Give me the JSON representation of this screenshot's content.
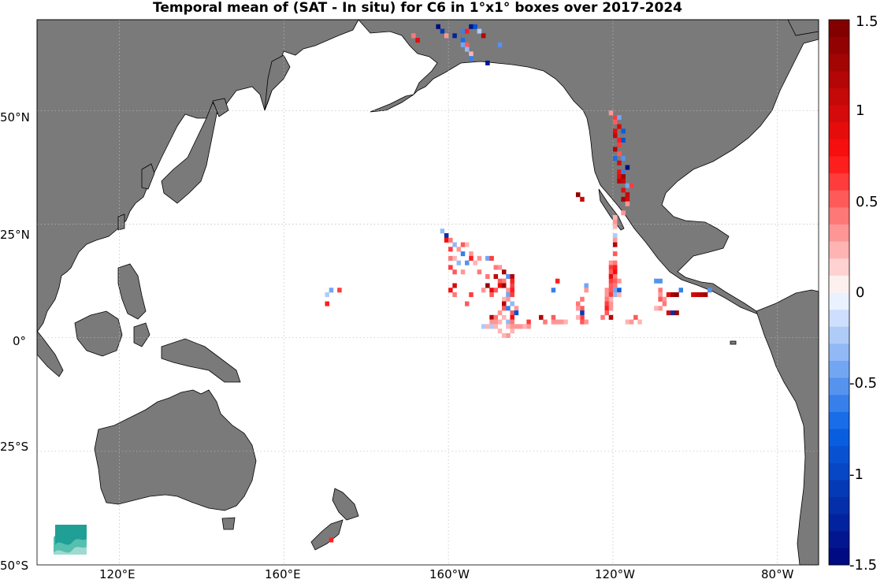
{
  "title": "Temporal mean of (SAT - In situ) for C6 in 1°x1° boxes over 2017-2024",
  "map": {
    "projection": "equirectangular",
    "lon_range": [
      100,
      290
    ],
    "lat_range": [
      -50,
      70
    ],
    "land_color": "#7a7a7a",
    "ocean_color": "#ffffff",
    "grid": true,
    "grid_style": "dotted",
    "lat_ticks": [
      {
        "label": "50°N",
        "lat": 50
      },
      {
        "label": "25°N",
        "lat": 25
      },
      {
        "label": "0°",
        "lat": 0
      },
      {
        "label": "25°S",
        "lat": -25
      },
      {
        "label": "50°S",
        "lat": -50
      }
    ],
    "lon_ticks": [
      {
        "label": "120°E",
        "lon": 120
      },
      {
        "label": "160°E",
        "lon": 160
      },
      {
        "label": "160°W",
        "lon": 200
      },
      {
        "label": "120°W",
        "lon": 240
      },
      {
        "label": "80°W",
        "lon": 280
      }
    ]
  },
  "colorbar": {
    "min": -1.5,
    "max": 1.5,
    "levels": 32,
    "colormap": "diverging blue-white-red",
    "ticks": [
      {
        "label": "1.5",
        "value": 1.5
      },
      {
        "label": "1",
        "value": 1
      },
      {
        "label": "0.5",
        "value": 0.5
      },
      {
        "label": "0",
        "value": 0
      },
      {
        "label": "-0.5",
        "value": -0.5
      },
      {
        "label": "-1",
        "value": -1
      },
      {
        "label": "-1.5",
        "value": -1.5
      }
    ]
  },
  "cells": [
    [
      191,
      66,
      0.45
    ],
    [
      192,
      65,
      0.9
    ],
    [
      197,
      68,
      -1.5
    ],
    [
      198,
      67,
      -1.1
    ],
    [
      199,
      66,
      0.3
    ],
    [
      201,
      66,
      -1.3
    ],
    [
      203,
      67,
      -0.6
    ],
    [
      204,
      67,
      0.7
    ],
    [
      205,
      68,
      -1.4
    ],
    [
      206,
      68,
      -0.9
    ],
    [
      207,
      67,
      -0.2
    ],
    [
      203,
      65,
      -0.7
    ],
    [
      208,
      66,
      1.2
    ],
    [
      203,
      64,
      -0.4
    ],
    [
      204,
      64,
      0.5
    ],
    [
      204,
      63,
      -0.3
    ],
    [
      205,
      62,
      0.2
    ],
    [
      205,
      61,
      -0.6
    ],
    [
      209,
      60,
      -1.4
    ],
    [
      212,
      64,
      -0.5
    ],
    [
      239,
      49,
      0.3
    ],
    [
      240,
      48,
      0.6
    ],
    [
      241,
      48,
      -0.4
    ],
    [
      240,
      47,
      0.5
    ],
    [
      241,
      46,
      1.0
    ],
    [
      240,
      45,
      0.9
    ],
    [
      242,
      45,
      -0.8
    ],
    [
      240,
      44,
      1.1
    ],
    [
      241,
      43,
      0.7
    ],
    [
      242,
      43,
      -0.9
    ],
    [
      241,
      42,
      0.6
    ],
    [
      240,
      41,
      1.2
    ],
    [
      241,
      40,
      0.5
    ],
    [
      240,
      39,
      -0.7
    ],
    [
      242,
      39,
      -0.5
    ],
    [
      241,
      38,
      1.0
    ],
    [
      243,
      37,
      -1.5
    ],
    [
      241,
      36,
      0.8
    ],
    [
      242,
      36,
      -0.6
    ],
    [
      241,
      35,
      0.9
    ],
    [
      242,
      35,
      1.3
    ],
    [
      241,
      34,
      1.2
    ],
    [
      242,
      34,
      1.1
    ],
    [
      243,
      33,
      -0.4
    ],
    [
      244,
      33,
      0.6
    ],
    [
      242,
      32,
      0.9
    ],
    [
      243,
      31,
      1.1
    ],
    [
      242,
      30,
      1.3
    ],
    [
      243,
      30,
      1.0
    ],
    [
      243,
      29,
      0.3
    ],
    [
      231,
      31,
      1.4
    ],
    [
      232,
      30,
      1.1
    ],
    [
      242,
      27,
      0.3
    ],
    [
      198,
      23,
      -0.3
    ],
    [
      199,
      22,
      -1.2
    ],
    [
      199,
      21,
      0.8
    ],
    [
      200,
      21,
      0.4
    ],
    [
      201,
      20,
      -0.3
    ],
    [
      203,
      20,
      0.5
    ],
    [
      204,
      20,
      0.2
    ],
    [
      200,
      19,
      0.6
    ],
    [
      202,
      19,
      0.3
    ],
    [
      203,
      18,
      -0.6
    ],
    [
      205,
      18,
      0.3
    ],
    [
      200,
      17,
      0.4
    ],
    [
      201,
      17,
      0.2
    ],
    [
      205,
      17,
      0.7
    ],
    [
      207,
      17,
      0.3
    ],
    [
      209,
      17,
      -0.4
    ],
    [
      210,
      17,
      0.6
    ],
    [
      202,
      16,
      -0.3
    ],
    [
      204,
      16,
      -0.5
    ],
    [
      206,
      16,
      0.2
    ],
    [
      211,
      15,
      0.4
    ],
    [
      212,
      15,
      0.3
    ],
    [
      200,
      15,
      0.6
    ],
    [
      201,
      14,
      0.5
    ],
    [
      203,
      14,
      0.3
    ],
    [
      207,
      14,
      0.4
    ],
    [
      213,
      14,
      1.3
    ],
    [
      209,
      13,
      0.4
    ],
    [
      211,
      13,
      1.1
    ],
    [
      214,
      13,
      -0.5
    ],
    [
      215,
      13,
      1.2
    ],
    [
      212,
      12,
      0.5
    ],
    [
      213,
      12,
      0.4
    ],
    [
      215,
      12,
      0.7
    ],
    [
      201,
      11,
      1.0
    ],
    [
      209,
      11,
      1.4
    ],
    [
      212,
      11,
      0.9
    ],
    [
      213,
      11,
      1.3
    ],
    [
      215,
      11,
      0.6
    ],
    [
      200,
      10,
      0.8
    ],
    [
      208,
      10,
      0.3
    ],
    [
      210,
      10,
      0.9
    ],
    [
      211,
      10,
      0.5
    ],
    [
      214,
      10,
      0.3
    ],
    [
      215,
      10,
      0.7
    ],
    [
      201,
      9,
      0.4
    ],
    [
      205,
      9,
      0.6
    ],
    [
      210,
      9,
      0.5
    ],
    [
      214,
      9,
      -0.4
    ],
    [
      215,
      9,
      0.6
    ],
    [
      213,
      8,
      0.2
    ],
    [
      214,
      8,
      0.3
    ],
    [
      204,
      7,
      0.5
    ],
    [
      213,
      7,
      1.2
    ],
    [
      215,
      7,
      -0.3
    ],
    [
      216,
      6,
      0.3
    ],
    [
      213,
      6,
      0.5
    ],
    [
      214,
      6,
      -0.6
    ],
    [
      212,
      5,
      0.3
    ],
    [
      215,
      5,
      0.5
    ],
    [
      216,
      5,
      -0.9
    ],
    [
      215,
      4,
      0.8
    ],
    [
      213,
      4,
      0.2
    ],
    [
      210,
      4,
      1.2
    ],
    [
      211,
      4,
      0.4
    ],
    [
      212,
      3,
      0.2
    ],
    [
      214,
      3,
      -0.3
    ],
    [
      210,
      3,
      0.3
    ],
    [
      211,
      3,
      0.3
    ],
    [
      215,
      3,
      0.4
    ],
    [
      214,
      2,
      0.2
    ],
    [
      215,
      2,
      0.3
    ],
    [
      215,
      1,
      0.2
    ],
    [
      170,
      9,
      -0.2
    ],
    [
      171,
      10,
      -0.4
    ],
    [
      173,
      10,
      0.6
    ],
    [
      170,
      7,
      0.7
    ],
    [
      225,
      10,
      -0.6
    ],
    [
      226,
      12,
      0.7
    ],
    [
      233,
      11,
      -0.4
    ],
    [
      233,
      10,
      0.3
    ],
    [
      232,
      8,
      0.4
    ],
    [
      231,
      7,
      0.4
    ],
    [
      232,
      6,
      0.5
    ],
    [
      231,
      6,
      0.3
    ],
    [
      232,
      5,
      -1.1
    ],
    [
      232,
      4,
      0.6
    ],
    [
      231,
      4,
      0.2
    ],
    [
      232,
      3,
      0.5
    ],
    [
      222,
      4,
      1.2
    ],
    [
      225,
      4,
      0.5
    ],
    [
      237,
      4,
      0.4
    ],
    [
      233,
      3,
      0.3
    ],
    [
      240,
      26,
      0.2
    ],
    [
      240,
      25,
      0.3
    ],
    [
      240,
      24,
      0.2
    ],
    [
      240,
      22,
      -0.2
    ],
    [
      240,
      21,
      0.3
    ],
    [
      240,
      20,
      1.2
    ],
    [
      240,
      18,
      0.5
    ],
    [
      239,
      16,
      0.3
    ],
    [
      240,
      16,
      0.4
    ],
    [
      239,
      15,
      0.6
    ],
    [
      240,
      15,
      0.7
    ],
    [
      239,
      14,
      0.5
    ],
    [
      240,
      14,
      0.8
    ],
    [
      239,
      13,
      0.9
    ],
    [
      240,
      13,
      0.4
    ],
    [
      239,
      12,
      0.6
    ],
    [
      240,
      12,
      0.5
    ],
    [
      241,
      12,
      0.3
    ],
    [
      239,
      11,
      0.5
    ],
    [
      240,
      11,
      0.4
    ],
    [
      238,
      10,
      0.3
    ],
    [
      239,
      10,
      0.5
    ],
    [
      240,
      10,
      -0.4
    ],
    [
      241,
      10,
      -0.8
    ],
    [
      238,
      9,
      0.3
    ],
    [
      239,
      9,
      0.6
    ],
    [
      240,
      9,
      -0.3
    ],
    [
      241,
      9,
      0.2
    ],
    [
      238,
      8,
      0.4
    ],
    [
      239,
      8,
      0.2
    ],
    [
      238,
      7,
      0.6
    ],
    [
      239,
      7,
      0.3
    ],
    [
      238,
      6,
      0.7
    ],
    [
      239,
      6,
      0.3
    ],
    [
      238,
      5,
      0.5
    ],
    [
      239,
      4,
      1.2
    ],
    [
      250,
      12,
      -0.5
    ],
    [
      251,
      12,
      -0.5
    ],
    [
      251,
      10,
      0.4
    ],
    [
      251,
      9,
      0.3
    ],
    [
      251,
      8,
      0.5
    ],
    [
      252,
      8,
      0.3
    ],
    [
      252,
      7,
      0.4
    ],
    [
      251,
      6,
      0.3
    ],
    [
      250,
      6,
      0.2
    ],
    [
      253,
      9,
      0.9
    ],
    [
      254,
      9,
      1.3
    ],
    [
      255,
      9,
      1.4
    ],
    [
      253,
      5,
      1.0
    ],
    [
      254,
      5,
      -1.2
    ],
    [
      255,
      5,
      1.4
    ],
    [
      256,
      10,
      -0.6
    ],
    [
      259,
      9,
      1.0
    ],
    [
      260,
      9,
      1.1
    ],
    [
      261,
      9,
      1.2
    ],
    [
      262,
      9,
      1.3
    ],
    [
      263,
      10,
      -0.5
    ],
    [
      243,
      3,
      0.2
    ],
    [
      244,
      3,
      0.3
    ],
    [
      245,
      4,
      0.5
    ],
    [
      246,
      3,
      0.2
    ],
    [
      219,
      3,
      0.6
    ],
    [
      223,
      3,
      0.4
    ],
    [
      225,
      3,
      0.3
    ],
    [
      226,
      3,
      0.3
    ],
    [
      227,
      3,
      0.3
    ],
    [
      228,
      3,
      0.2
    ],
    [
      219,
      2,
      0.3
    ],
    [
      218,
      2,
      0.2
    ],
    [
      217,
      2,
      0.3
    ],
    [
      216,
      2,
      0.3
    ],
    [
      210,
      2,
      -0.2
    ],
    [
      209,
      2,
      0.2
    ],
    [
      211,
      2,
      0.2
    ],
    [
      208,
      2,
      -0.2
    ],
    [
      212,
      1,
      0.2
    ],
    [
      214,
      0,
      0.3
    ],
    [
      213,
      0,
      0.2
    ],
    [
      171,
      -45,
      0.7
    ]
  ]
}
